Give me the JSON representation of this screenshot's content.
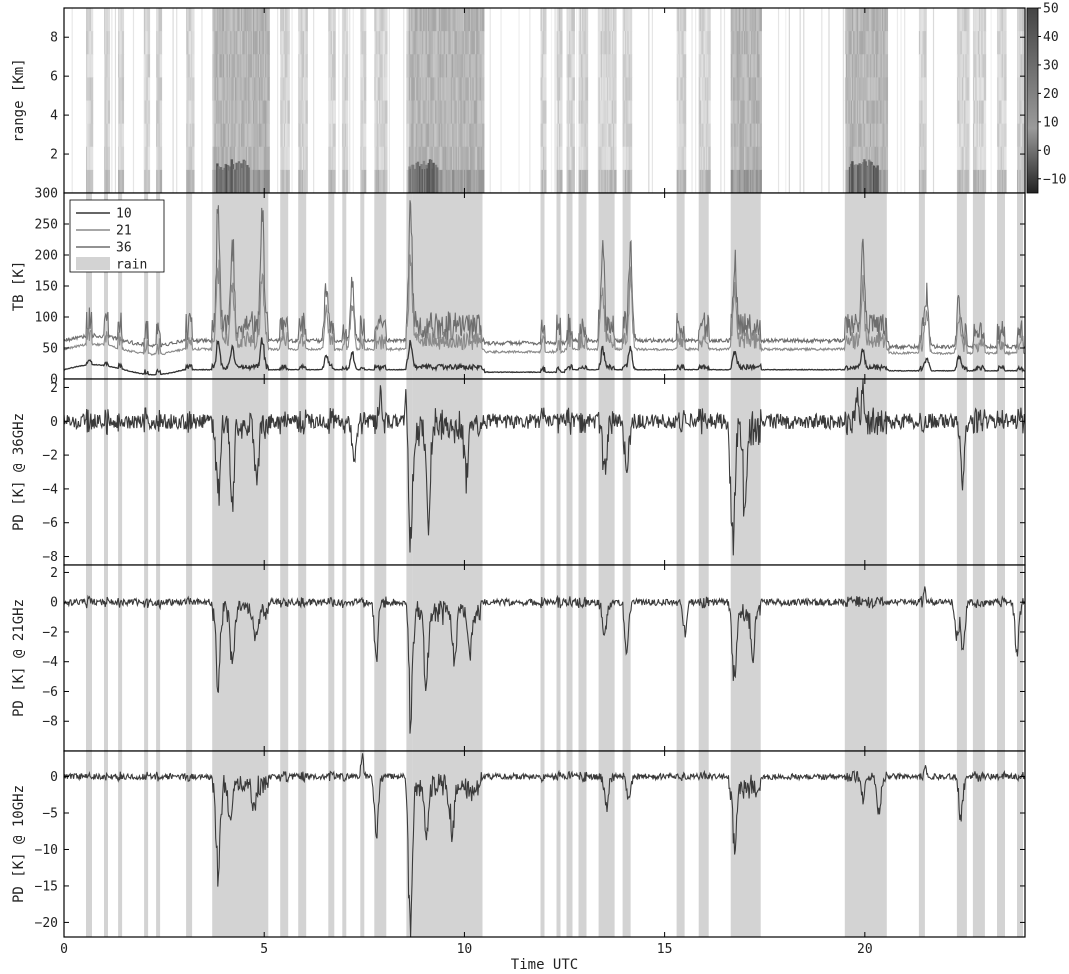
{
  "chart_data": [
    {
      "type": "heatmap",
      "panel": "range",
      "ylabel": "range [Km]",
      "xlim": [
        0,
        24
      ],
      "ylim": [
        0,
        9.5
      ],
      "y_ticks": [
        2,
        4,
        6,
        8
      ],
      "colorbar": {
        "min": -15,
        "max": 50,
        "ticks": [
          -10,
          0,
          10,
          20,
          30,
          40,
          50
        ]
      },
      "rain_intervals": [
        [
          0.55,
          0.7
        ],
        [
          1.0,
          1.1
        ],
        [
          1.35,
          1.45
        ],
        [
          2.0,
          2.1
        ],
        [
          2.3,
          2.4
        ],
        [
          3.05,
          3.2
        ],
        [
          3.7,
          5.1
        ],
        [
          5.4,
          5.6
        ],
        [
          5.85,
          6.05
        ],
        [
          6.6,
          6.75
        ],
        [
          6.95,
          7.05
        ],
        [
          7.4,
          7.5
        ],
        [
          7.75,
          8.05
        ],
        [
          8.55,
          8.7
        ],
        [
          8.7,
          10.45
        ],
        [
          11.9,
          12.0
        ],
        [
          12.3,
          12.4
        ],
        [
          12.55,
          12.7
        ],
        [
          12.85,
          13.05
        ],
        [
          13.35,
          13.75
        ],
        [
          13.95,
          14.15
        ],
        [
          15.3,
          15.5
        ],
        [
          15.85,
          16.1
        ],
        [
          16.65,
          17.4
        ],
        [
          19.5,
          20.55
        ],
        [
          21.35,
          21.5
        ],
        [
          22.3,
          22.55
        ],
        [
          22.7,
          23.0
        ],
        [
          23.3,
          23.5
        ],
        [
          23.8,
          23.95
        ]
      ]
    },
    {
      "type": "line",
      "panel": "tb",
      "ylabel": "TB [K]",
      "xlim": [
        0,
        24
      ],
      "ylim": [
        0,
        300
      ],
      "y_ticks": [
        0,
        50,
        100,
        150,
        200,
        250,
        300
      ],
      "legend": {
        "placement": "top-left",
        "entries": [
          "10",
          "21",
          "36",
          "rain"
        ]
      },
      "series": [
        {
          "name": "10",
          "baseline": 15,
          "color": "#333333"
        },
        {
          "name": "21",
          "baseline": 48,
          "color": "#8a8a8a"
        },
        {
          "name": "36",
          "baseline": 62,
          "color": "#6e6e6e"
        }
      ],
      "peaks": [
        [
          3.85,
          270
        ],
        [
          4.2,
          240
        ],
        [
          4.95,
          265
        ],
        [
          6.55,
          160
        ],
        [
          7.2,
          180
        ],
        [
          8.65,
          275
        ],
        [
          14.15,
          210
        ],
        [
          13.45,
          190
        ],
        [
          16.75,
          180
        ],
        [
          19.95,
          200
        ],
        [
          21.55,
          160
        ],
        [
          22.35,
          130
        ]
      ]
    },
    {
      "type": "line",
      "panel": "pd36",
      "ylabel": "PD [K] @ 36GHz",
      "xlim": [
        0,
        24
      ],
      "ylim": [
        -8.5,
        2.5
      ],
      "y_ticks": [
        -8,
        -6,
        -4,
        -2,
        0,
        2
      ],
      "dips": [
        [
          3.85,
          -4.2
        ],
        [
          4.2,
          -4.8
        ],
        [
          4.8,
          -3.6
        ],
        [
          7.25,
          -2.8
        ],
        [
          8.65,
          -8.5
        ],
        [
          9.1,
          -5.3
        ],
        [
          10.05,
          -3.2
        ],
        [
          13.5,
          -3.3
        ],
        [
          14.05,
          -3.5
        ],
        [
          16.7,
          -7.5
        ],
        [
          17.0,
          -5.0
        ],
        [
          22.45,
          -3.2
        ]
      ],
      "peaks_up": [
        [
          7.9,
          2.2
        ],
        [
          8.55,
          2.5
        ],
        [
          19.95,
          2.2
        ],
        [
          19.8,
          1.6
        ]
      ]
    },
    {
      "type": "line",
      "panel": "pd21",
      "ylabel": "PD [K] @ 21GHz",
      "xlim": [
        0,
        24
      ],
      "ylim": [
        -10,
        2.5
      ],
      "y_ticks": [
        -8,
        -6,
        -4,
        -2,
        0,
        2
      ],
      "dips": [
        [
          3.85,
          -5.8
        ],
        [
          4.2,
          -4.5
        ],
        [
          4.8,
          -2.2
        ],
        [
          7.8,
          -4.0
        ],
        [
          8.65,
          -10
        ],
        [
          9.05,
          -5.2
        ],
        [
          9.75,
          -3.8
        ],
        [
          10.15,
          -2.6
        ],
        [
          13.5,
          -2.3
        ],
        [
          14.05,
          -3.2
        ],
        [
          15.5,
          -2.5
        ],
        [
          16.75,
          -5.8
        ],
        [
          17.2,
          -3.1
        ],
        [
          22.3,
          -2.5
        ],
        [
          22.45,
          -3.3
        ],
        [
          23.8,
          -3.3
        ]
      ],
      "peaks_up": [
        [
          8.6,
          2.6
        ],
        [
          21.5,
          0.8
        ]
      ]
    },
    {
      "type": "line",
      "panel": "pd10",
      "ylabel": "PD [K] @ 10GHz",
      "xlabel": "Time UTC",
      "xlim": [
        0,
        24
      ],
      "ylim": [
        -22,
        3.5
      ],
      "y_ticks": [
        -20,
        -15,
        -10,
        -5,
        0
      ],
      "x_ticks": [
        0,
        5,
        10,
        15,
        20
      ],
      "dips": [
        [
          3.85,
          -13.5
        ],
        [
          4.15,
          -5.0
        ],
        [
          4.75,
          -4.0
        ],
        [
          7.8,
          -8.5
        ],
        [
          8.65,
          -22
        ],
        [
          9.05,
          -7.5
        ],
        [
          9.7,
          -7.0
        ],
        [
          13.55,
          -4.5
        ],
        [
          14.1,
          -3.0
        ],
        [
          16.75,
          -9.0
        ],
        [
          19.95,
          -3.5
        ],
        [
          20.35,
          -5.5
        ],
        [
          22.4,
          -6.5
        ]
      ],
      "peaks_up": [
        [
          7.45,
          3.0
        ],
        [
          21.5,
          1.5
        ]
      ]
    }
  ]
}
